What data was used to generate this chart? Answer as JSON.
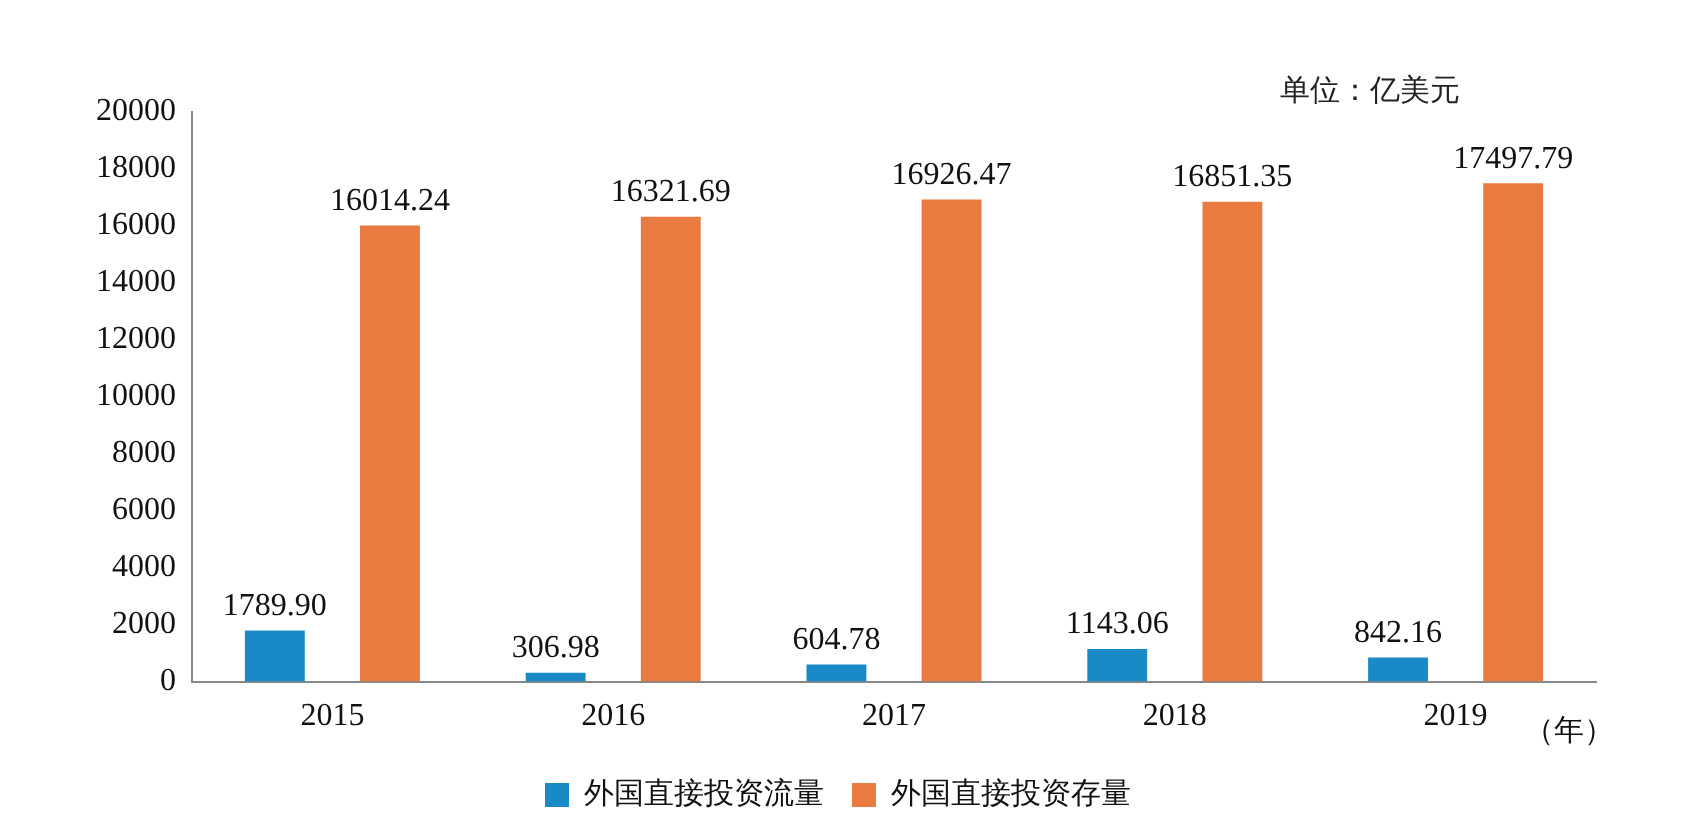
{
  "chart_data": {
    "type": "bar",
    "categories": [
      "2015",
      "2016",
      "2017",
      "2018",
      "2019"
    ],
    "xlabel": "（年）",
    "annotations": [
      "单位：亿美元"
    ],
    "series": [
      {
        "name": "外国直接投资流量",
        "color": "#1a8ac6",
        "values": [
          1789.9,
          306.98,
          604.78,
          1143.06,
          842.16
        ],
        "value_labels": [
          "1789.90",
          "306.98",
          "604.78",
          "1143.06",
          "842.16"
        ]
      },
      {
        "name": "外国直接投资存量",
        "color": "#e97b40",
        "values": [
          16014.24,
          16321.69,
          16926.47,
          16851.35,
          17497.79
        ],
        "value_labels": [
          "16014.24",
          "16321.69",
          "16926.47",
          "16851.35",
          "17497.79"
        ]
      }
    ],
    "ylim": [
      0,
      20000
    ],
    "yticks": [
      0,
      2000,
      4000,
      6000,
      8000,
      10000,
      12000,
      14000,
      16000,
      18000,
      20000
    ],
    "grid": false,
    "legend": "bottom"
  }
}
